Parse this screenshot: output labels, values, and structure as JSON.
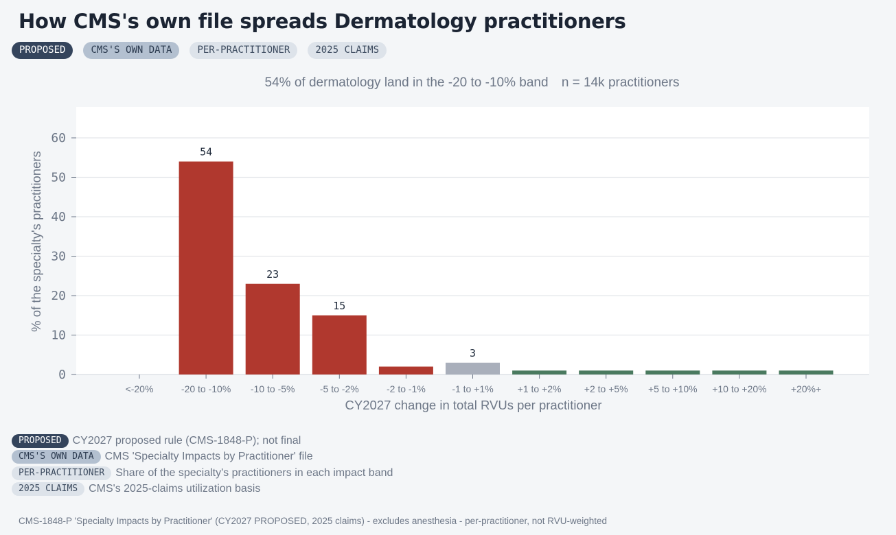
{
  "title": "How CMS's own file spreads Dermatology practitioners",
  "tags": [
    {
      "label": "PROPOSED",
      "style": "dark"
    },
    {
      "label": "CMS'S OWN DATA",
      "style": "mid"
    },
    {
      "label": "PER-PRACTITIONER",
      "style": "light"
    },
    {
      "label": "2025 CLAIMS",
      "style": "light"
    }
  ],
  "subtitle": {
    "headline": "54% of dermatology land in the -20 to -10% band",
    "sample": "n = 14k practitioners"
  },
  "chart_data": {
    "type": "bar",
    "xlabel": "CY2027 change in total RVUs per practitioner",
    "ylabel": "% of the specialty's practitioners",
    "ylim": [
      0,
      60
    ],
    "yticks": [
      0,
      10,
      20,
      30,
      40,
      50,
      60
    ],
    "grid": true,
    "categories": [
      "<-20%",
      "-20 to -10%",
      "-10 to -5%",
      "-5 to -2%",
      "-2 to -1%",
      "-1 to +1%",
      "+1 to +2%",
      "+2 to +5%",
      "+5 to +10%",
      "+10 to +20%",
      "+20%+"
    ],
    "values": [
      0,
      54,
      23,
      15,
      2,
      3,
      1,
      1,
      1,
      1,
      1
    ],
    "data_labels": [
      "",
      "54",
      "23",
      "15",
      "",
      "3",
      "",
      "",
      "",
      "",
      ""
    ],
    "colors": {
      "negative": "#b0382e",
      "neutral": "#a9afbb",
      "positive": "#4a7a5f"
    }
  },
  "legend": [
    {
      "label": "PROPOSED",
      "style": "dark",
      "text": "CY2027 proposed rule (CMS-1848-P); not final"
    },
    {
      "label": "CMS'S OWN DATA",
      "style": "mid",
      "text": "CMS 'Specialty Impacts by Practitioner' file"
    },
    {
      "label": "PER-PRACTITIONER",
      "style": "light",
      "text": "Share of the specialty's practitioners in each impact band"
    },
    {
      "label": "2025 CLAIMS",
      "style": "light",
      "text": "CMS's 2025-claims utilization basis"
    }
  ],
  "footnote": "CMS-1848-P 'Specialty Impacts by Practitioner' (CY2027 PROPOSED, 2025 claims) - excludes anesthesia - per-practitioner, not RVU-weighted"
}
